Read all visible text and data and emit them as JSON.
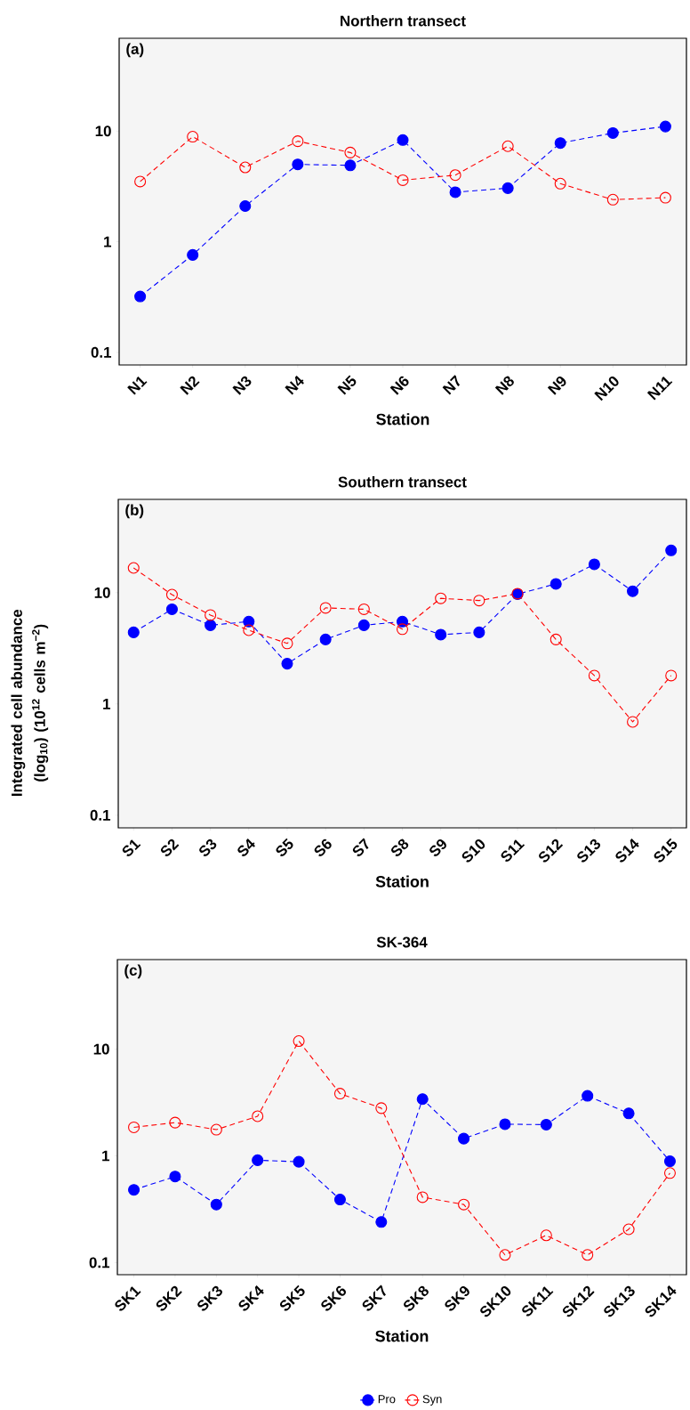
{
  "chart_data": [
    {
      "type": "line",
      "title": "Northern transect",
      "xlabel": "Station",
      "annotations": [
        "(a)"
      ],
      "log": "y",
      "ylim": [
        0.077,
        69
      ],
      "yticks": [
        0.1,
        1,
        10
      ],
      "line_style": "dashed",
      "legend": false,
      "categories": [
        "N1",
        "N2",
        "N3",
        "N4",
        "N5",
        "N6",
        "N7",
        "N8",
        "N9",
        "N10",
        "N11"
      ],
      "series": [
        {
          "color": "#0000ff",
          "marker": "circle",
          "values": [
            0.32,
            0.76,
            2.1,
            5.0,
            4.9,
            8.3,
            2.8,
            3.05,
            7.8,
            9.6,
            11
          ]
        },
        {
          "color": "#ff0000",
          "marker": "open circle",
          "values": [
            3.5,
            8.9,
            4.7,
            8.1,
            6.4,
            3.6,
            4.0,
            7.3,
            3.35,
            2.4,
            2.5
          ]
        }
      ]
    },
    {
      "type": "line",
      "title": "Southern transect",
      "xlabel": "Station",
      "ylabel": "Integrated cell abundance (log$_{10}$) (10$^{12}$ cells m$^{−2}$)",
      "annotations": [
        "(b)"
      ],
      "log": "y",
      "ylim": [
        0.077,
        69
      ],
      "yticks": [
        0.1,
        1,
        10
      ],
      "line_style": "dashed",
      "legend": false,
      "categories": [
        "S1",
        "S2",
        "S3",
        "S4",
        "S5",
        "S6",
        "S7",
        "S8",
        "S9",
        "S10",
        "S11",
        "S12",
        "S13",
        "S14",
        "S15"
      ],
      "series": [
        {
          "color": "#0000ff",
          "marker": "circle",
          "values": [
            4.4,
            7.1,
            5.1,
            5.5,
            2.3,
            3.8,
            5.1,
            5.5,
            4.2,
            4.4,
            9.7,
            12,
            18,
            10.3,
            24
          ]
        },
        {
          "color": "#ff0000",
          "marker": "open circle",
          "values": [
            16.7,
            9.6,
            6.3,
            4.6,
            3.5,
            7.3,
            7.1,
            4.7,
            8.9,
            8.5,
            9.8,
            3.8,
            1.8,
            0.69,
            1.8
          ]
        }
      ]
    },
    {
      "type": "line",
      "title": "SK-364",
      "xlabel": "Station",
      "annotations": [
        "(c)"
      ],
      "log": "y",
      "ylim": [
        0.077,
        69
      ],
      "yticks": [
        0.1,
        1,
        10
      ],
      "line_style": "dashed",
      "legend": "bottom",
      "categories": [
        "SK1",
        "SK2",
        "SK3",
        "SK4",
        "SK5",
        "SK6",
        "SK7",
        "SK8",
        "SK9",
        "SK10",
        "SK11",
        "SK12",
        "SK13",
        "SK14"
      ],
      "series": [
        {
          "name": "Pro",
          "color": "#0000ff",
          "marker": "circle",
          "values": [
            0.48,
            0.64,
            0.35,
            0.91,
            0.88,
            0.39,
            0.24,
            3.4,
            1.45,
            1.98,
            1.96,
            3.65,
            2.5,
            0.89
          ]
        },
        {
          "name": "Syn",
          "color": "#ff0000",
          "marker": "open circle",
          "values": [
            1.85,
            2.05,
            1.76,
            2.35,
            11.9,
            3.83,
            2.8,
            0.41,
            0.35,
            0.118,
            0.18,
            0.118,
            0.205,
            0.69
          ]
        }
      ]
    }
  ]
}
